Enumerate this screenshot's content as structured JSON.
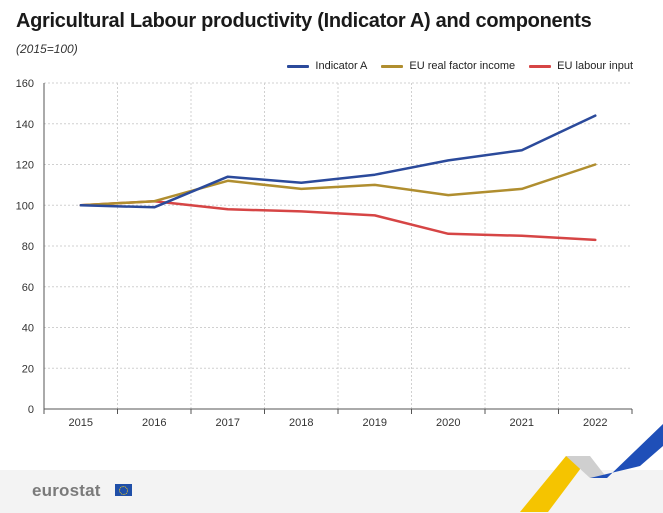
{
  "header": {
    "title": "Agricultural Labour productivity (Indicator A) and components",
    "subtitle": "(2015=100)"
  },
  "footer": {
    "logo_text": "eurostat"
  },
  "colors": {
    "indicator_a": "#2b4a9b",
    "real_factor_income": "#b08e2f",
    "labour_input": "#d64545",
    "grid": "#d0d0d0",
    "axis": "#555555",
    "deco_blue": "#1f4fb8",
    "deco_yellow": "#f5c400"
  },
  "chart_data": {
    "type": "line",
    "title": "Agricultural Labour productivity (Indicator A) and components",
    "subtitle": "(2015=100)",
    "xlabel": "",
    "ylabel": "",
    "categories": [
      "2015",
      "2016",
      "2017",
      "2018",
      "2019",
      "2020",
      "2021",
      "2022"
    ],
    "ylim": [
      0,
      160
    ],
    "yticks": [
      0,
      20,
      40,
      60,
      80,
      100,
      120,
      140,
      160
    ],
    "grid": true,
    "legend_position": "top-right",
    "series": [
      {
        "name": "Indicator A",
        "color": "#2b4a9b",
        "values": [
          100,
          99,
          114,
          111,
          115,
          122,
          127,
          144
        ]
      },
      {
        "name": "EU real factor income",
        "color": "#b08e2f",
        "values": [
          100,
          102,
          112,
          108,
          110,
          105,
          108,
          120
        ]
      },
      {
        "name": "EU labour input",
        "color": "#d64545",
        "values": [
          100,
          102,
          98,
          97,
          95,
          86,
          85,
          83
        ]
      }
    ]
  }
}
